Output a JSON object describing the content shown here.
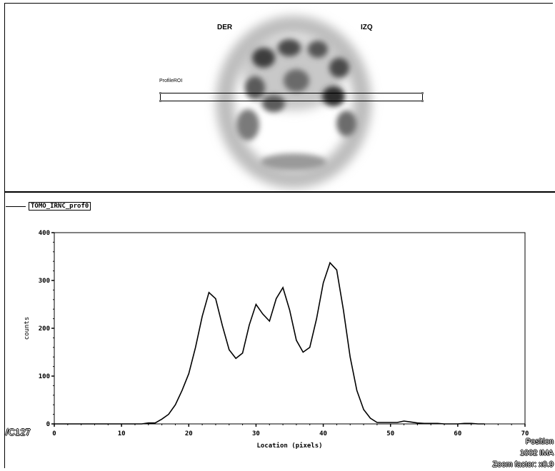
{
  "image_panel": {
    "label_right": "DER",
    "label_left": "IZQ",
    "roi_label": "ProfileROI"
  },
  "legend": {
    "series_name": "TOMO_IRNC_prof0"
  },
  "overlay": {
    "left_code": "/C127",
    "position": "Position",
    "image_id": "1002 IMA",
    "zoom": "Zoom factor: x0.9"
  },
  "chart_data": {
    "type": "line",
    "xlabel": "Location (pixels)",
    "ylabel": "counts",
    "xlim": [
      0,
      70
    ],
    "ylim": [
      0,
      400
    ],
    "xticks": [
      0,
      10,
      20,
      30,
      40,
      50,
      60,
      70
    ],
    "yticks": [
      0,
      100,
      200,
      300,
      400
    ],
    "series": [
      {
        "name": "TOMO_IRNC_prof0",
        "x": [
          0,
          1,
          2,
          3,
          4,
          5,
          6,
          7,
          8,
          9,
          10,
          11,
          12,
          13,
          14,
          15,
          16,
          17,
          18,
          19,
          20,
          21,
          22,
          23,
          24,
          25,
          26,
          27,
          28,
          29,
          30,
          31,
          32,
          33,
          34,
          35,
          36,
          37,
          38,
          39,
          40,
          41,
          42,
          43,
          44,
          45,
          46,
          47,
          48,
          49,
          50,
          51,
          52,
          53,
          54,
          55,
          56,
          57,
          58,
          59,
          60,
          61,
          62,
          63,
          64
        ],
        "y": [
          0,
          0,
          0,
          0,
          0,
          0,
          0,
          0,
          0,
          0,
          0,
          0,
          0,
          0,
          2,
          2,
          10,
          20,
          40,
          70,
          105,
          160,
          225,
          275,
          262,
          205,
          155,
          137,
          148,
          207,
          250,
          230,
          215,
          262,
          285,
          238,
          175,
          150,
          160,
          220,
          295,
          337,
          322,
          238,
          140,
          70,
          30,
          12,
          3,
          3,
          3,
          3,
          6,
          4,
          2,
          1,
          1,
          1,
          0,
          0,
          0,
          1,
          1,
          0,
          0
        ]
      }
    ]
  }
}
